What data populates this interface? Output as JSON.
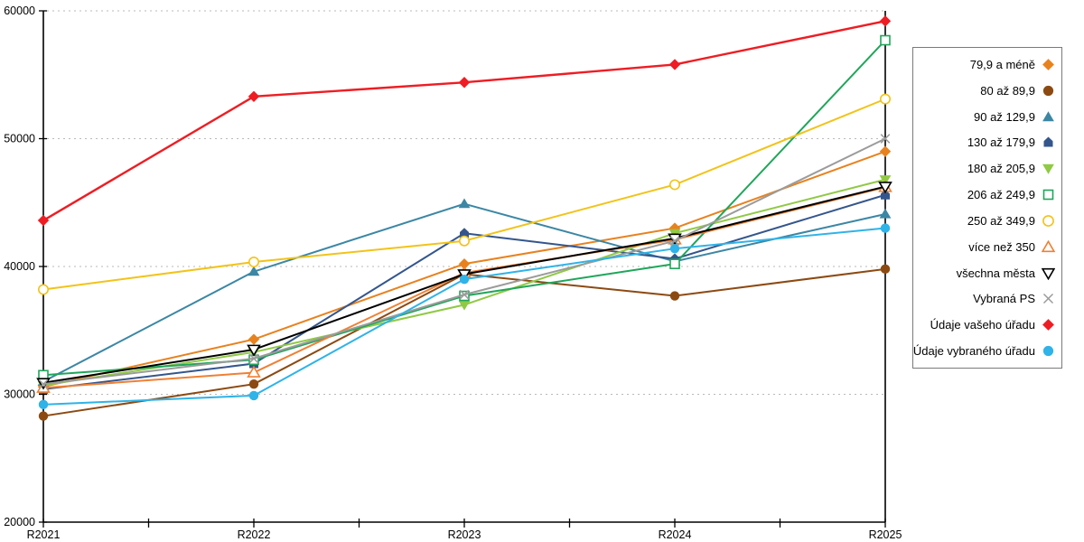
{
  "chart_data": {
    "type": "line",
    "title": "",
    "xlabel": "",
    "ylabel": "",
    "categories": [
      "R2021",
      "R2022",
      "R2023",
      "R2024",
      "R2025"
    ],
    "y_axis": {
      "min": 20000,
      "max": 60000,
      "step": 10000,
      "tick_labels": [
        "20000",
        "30000",
        "40000",
        "50000",
        "60000"
      ]
    },
    "grid": "horizontal-dotted",
    "grid_color": "#b9b9b9",
    "axis_color": "#000000",
    "legend_position": "right",
    "series": [
      {
        "name": "79,9 a méně",
        "marker": "diamond",
        "fill": "solid",
        "color": "#E8821E",
        "values": [
          30600,
          34300,
          40200,
          43000,
          49000
        ]
      },
      {
        "name": "80 až 89,9",
        "marker": "circle",
        "fill": "solid",
        "color": "#8C4A12",
        "values": [
          28300,
          30800,
          39400,
          37700,
          39800
        ]
      },
      {
        "name": "90 až 129,9",
        "marker": "triangle-up",
        "fill": "solid",
        "color": "#3B87A4",
        "values": [
          31000,
          39600,
          44900,
          40400,
          44100
        ]
      },
      {
        "name": "130 až 179,9",
        "marker": "pentagon",
        "fill": "solid",
        "color": "#34568C",
        "values": [
          30400,
          32400,
          42600,
          40600,
          45600
        ]
      },
      {
        "name": "180 až 205,9",
        "marker": "triangle-down",
        "fill": "solid",
        "color": "#90C944",
        "values": [
          30700,
          33300,
          37000,
          42600,
          46800
        ]
      },
      {
        "name": "206 až 249,9",
        "marker": "square",
        "fill": "hollow",
        "color": "#1FA65A",
        "values": [
          31500,
          32700,
          37700,
          40200,
          57700
        ]
      },
      {
        "name": "250 až 349,9",
        "marker": "circle",
        "fill": "hollow",
        "color": "#F2C319",
        "values": [
          38200,
          40350,
          42000,
          46400,
          53100
        ]
      },
      {
        "name": "více než 350",
        "marker": "triangle-up",
        "fill": "hollow",
        "color": "#F08033",
        "values": [
          30500,
          31700,
          39500,
          42100,
          46200
        ]
      },
      {
        "name": "všechna města",
        "marker": "triangle-down",
        "fill": "hollow",
        "color": "#000000",
        "values": [
          30900,
          33500,
          39400,
          42200,
          46250
        ]
      },
      {
        "name": "Vybraná PS",
        "marker": "x",
        "fill": "line",
        "color": "#9B9B9B",
        "values": [
          30800,
          32800,
          37800,
          42000,
          50000
        ]
      },
      {
        "name": "Údaje vašeho úřadu",
        "marker": "diamond",
        "fill": "solid",
        "color": "#EE1D23",
        "values": [
          43600,
          53300,
          54400,
          55800,
          59200
        ]
      },
      {
        "name": "Údaje vybraného úřadu",
        "marker": "circle",
        "fill": "solid",
        "color": "#2FB3E8",
        "values": [
          29200,
          29900,
          39000,
          41400,
          43000
        ]
      }
    ]
  }
}
